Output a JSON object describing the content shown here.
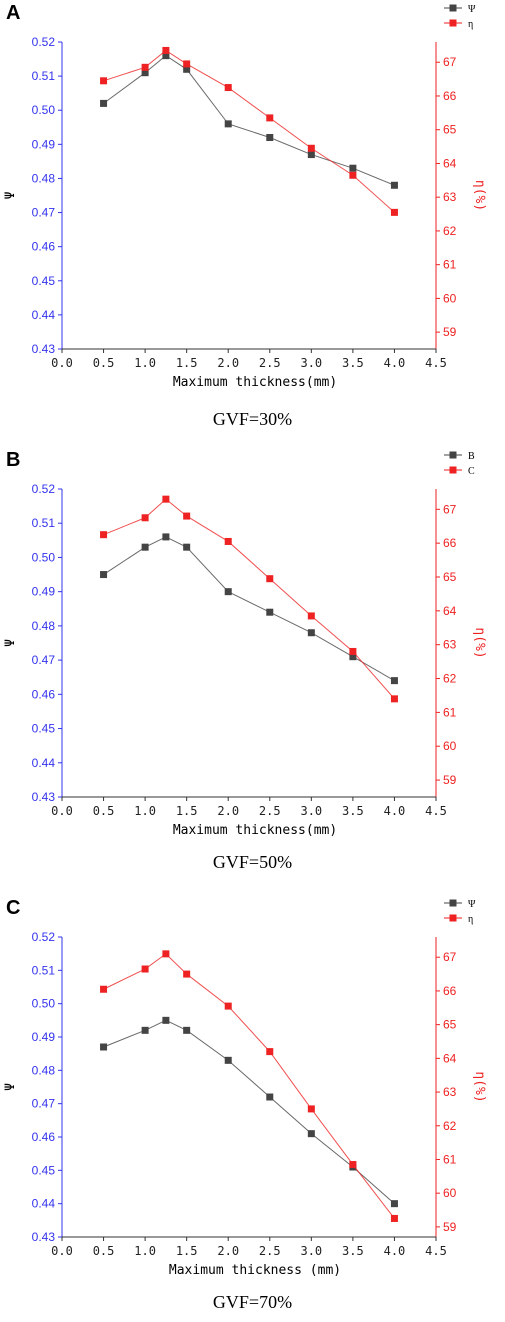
{
  "chart_data": [
    {
      "type": "line",
      "panel_label": "A",
      "caption": "GVF=30%",
      "xlabel": "Maximum thickness(mm)",
      "ylabel": "Ψ",
      "ylabel_right": "η(%)",
      "x_ticks": [
        "0.0",
        "0.5",
        "1.0",
        "1.5",
        "2.0",
        "2.5",
        "3.0",
        "3.5",
        "4.0",
        "4.5"
      ],
      "y_ticks": [
        "0.43",
        "0.44",
        "0.45",
        "0.46",
        "0.47",
        "0.48",
        "0.49",
        "0.50",
        "0.51",
        "0.52"
      ],
      "y_ticks_right": [
        "59",
        "60",
        "61",
        "62",
        "63",
        "64",
        "65",
        "66",
        "67"
      ],
      "xlim": [
        0,
        4.5
      ],
      "ylim": [
        0.43,
        0.52
      ],
      "ylim_right": [
        58.5,
        67.6
      ],
      "x": [
        0.5,
        1.0,
        1.25,
        1.5,
        2.0,
        2.5,
        3.0,
        3.5,
        4.0
      ],
      "series": [
        {
          "name": "Ψ",
          "axis": "left",
          "color": "#444444",
          "values": [
            0.502,
            0.511,
            0.516,
            0.512,
            0.496,
            0.492,
            0.487,
            0.483,
            0.478
          ]
        },
        {
          "name": "η",
          "axis": "right",
          "color": "#ee2222",
          "values": [
            66.45,
            66.85,
            67.35,
            66.95,
            66.25,
            65.35,
            64.45,
            63.65,
            62.55
          ]
        }
      ],
      "legend": "top-right"
    },
    {
      "type": "line",
      "panel_label": "B",
      "caption": "GVF=50%",
      "xlabel": "Maximum thickness(mm)",
      "ylabel": "Ψ",
      "ylabel_right": "η(%)",
      "x_ticks": [
        "0.0",
        "0.5",
        "1.0",
        "1.5",
        "2.0",
        "2.5",
        "3.0",
        "3.5",
        "4.0",
        "4.5"
      ],
      "y_ticks": [
        "0.43",
        "0.44",
        "0.45",
        "0.46",
        "0.47",
        "0.48",
        "0.49",
        "0.50",
        "0.51",
        "0.52"
      ],
      "y_ticks_right": [
        "59",
        "60",
        "61",
        "62",
        "63",
        "64",
        "65",
        "66",
        "67"
      ],
      "xlim": [
        0,
        4.5
      ],
      "ylim": [
        0.43,
        0.52
      ],
      "ylim_right": [
        58.5,
        67.6
      ],
      "x": [
        0.5,
        1.0,
        1.25,
        1.5,
        2.0,
        2.5,
        3.0,
        3.5,
        4.0
      ],
      "series": [
        {
          "name": "B",
          "axis": "left",
          "color": "#444444",
          "values": [
            0.495,
            0.503,
            0.506,
            0.503,
            0.49,
            0.484,
            0.478,
            0.471,
            0.464
          ]
        },
        {
          "name": "C",
          "axis": "right",
          "color": "#ee2222",
          "values": [
            66.25,
            66.75,
            67.3,
            66.8,
            66.05,
            64.95,
            63.85,
            62.8,
            61.4
          ]
        }
      ],
      "legend": "top-right"
    },
    {
      "type": "line",
      "panel_label": "C",
      "caption": "GVF=70%",
      "xlabel": "Maximum thickness (mm)",
      "ylabel": "Ψ",
      "ylabel_right": "η(%)",
      "x_ticks": [
        "0.0",
        "0.5",
        "1.0",
        "1.5",
        "2.0",
        "2.5",
        "3.0",
        "3.5",
        "4.0",
        "4.5"
      ],
      "y_ticks": [
        "0.43",
        "0.44",
        "0.45",
        "0.46",
        "0.47",
        "0.48",
        "0.49",
        "0.50",
        "0.51",
        "0.52"
      ],
      "y_ticks_right": [
        "59",
        "60",
        "61",
        "62",
        "63",
        "64",
        "65",
        "66",
        "67"
      ],
      "xlim": [
        0,
        4.5
      ],
      "ylim": [
        0.43,
        0.52
      ],
      "ylim_right": [
        58.7,
        67.6
      ],
      "x": [
        0.5,
        1.0,
        1.25,
        1.5,
        2.0,
        2.5,
        3.0,
        3.5,
        4.0
      ],
      "series": [
        {
          "name": "Ψ",
          "axis": "left",
          "color": "#444444",
          "values": [
            0.487,
            0.492,
            0.495,
            0.492,
            0.483,
            0.472,
            0.461,
            0.451,
            0.44
          ]
        },
        {
          "name": "η",
          "axis": "right",
          "color": "#ee2222",
          "values": [
            66.05,
            66.65,
            67.1,
            66.5,
            65.55,
            64.2,
            62.5,
            60.85,
            59.25
          ]
        }
      ],
      "legend": "top-right"
    }
  ]
}
